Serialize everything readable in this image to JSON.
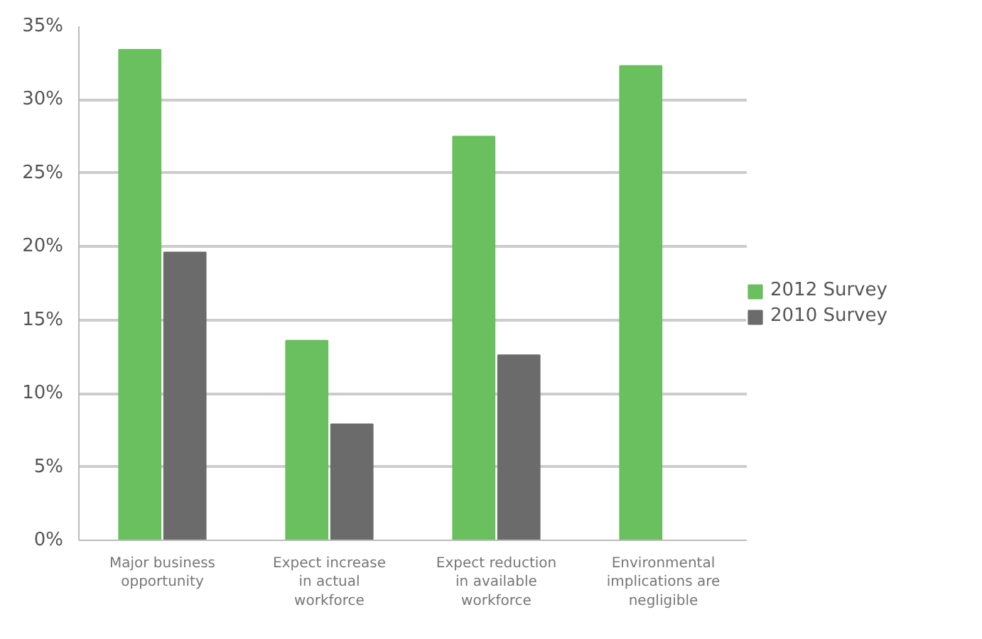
{
  "chart_data": {
    "type": "bar",
    "categories": [
      "Major business opportunity",
      "Expect increase in actual workforce",
      "Expect reduction in available workforce",
      "Environmental implications are negligible"
    ],
    "series": [
      {
        "name": "2012 Survey",
        "color": "#6abf5e",
        "values": [
          33.4,
          13.6,
          27.5,
          32.3
        ]
      },
      {
        "name": "2010 Survey",
        "color": "#6b6b6b",
        "values": [
          19.6,
          7.9,
          12.6,
          null
        ]
      }
    ],
    "ylim": [
      0,
      35
    ],
    "yticks": [
      {
        "value": 0,
        "label": "0%"
      },
      {
        "value": 5,
        "label": "5%"
      },
      {
        "value": 10,
        "label": "10%"
      },
      {
        "value": 15,
        "label": "15%"
      },
      {
        "value": 20,
        "label": "20%"
      },
      {
        "value": 25,
        "label": "25%"
      },
      {
        "value": 30,
        "label": "30%"
      },
      {
        "value": 35,
        "label": "35%"
      }
    ],
    "grid": "y",
    "legend": "right"
  }
}
